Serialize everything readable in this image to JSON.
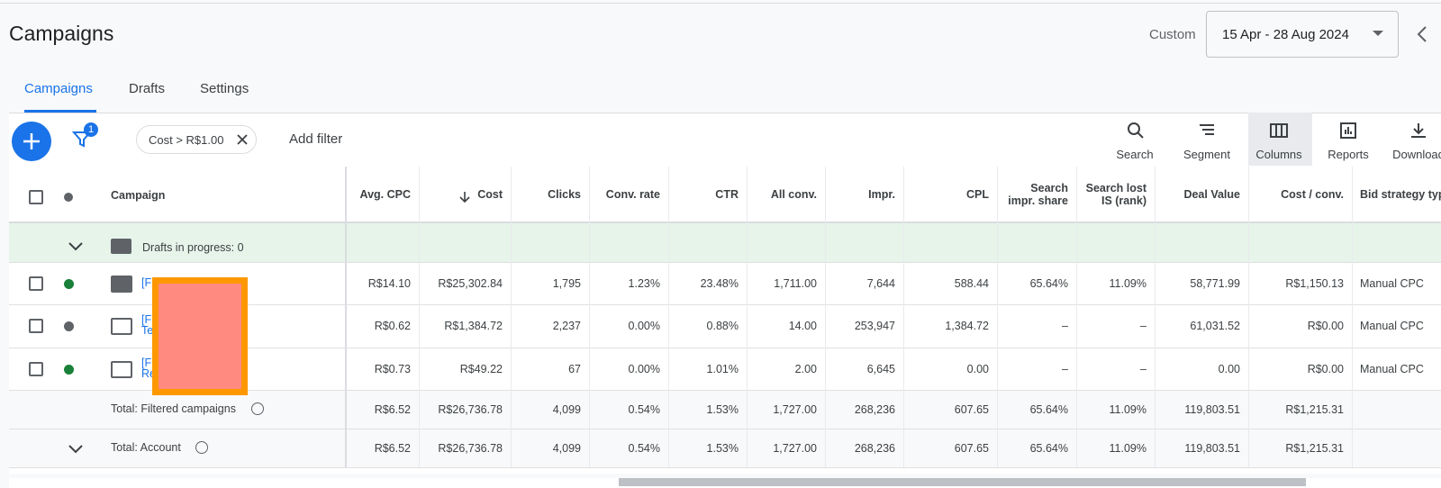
{
  "header": {
    "title": "Campaigns",
    "range_label": "Custom",
    "date_range": "15 Apr - 28 Aug 2024"
  },
  "tabs": [
    "Campaigns",
    "Drafts",
    "Settings"
  ],
  "toolbar": {
    "filter_count": "1",
    "filter_chip": "Cost > R$1.00",
    "add_filter": "Add filter",
    "actions": [
      "Search",
      "Segment",
      "Columns",
      "Reports",
      "Download"
    ]
  },
  "table": {
    "campaign_header": "Campaign",
    "columns": [
      "Avg. CPC",
      "Cost",
      "Clicks",
      "Conv. rate",
      "CTR",
      "All conv.",
      "Impr.",
      "CPL",
      "Search impr. share",
      "Search lost IS (rank)",
      "Deal Value",
      "Cost / conv.",
      "Bid strategy type"
    ],
    "drafts": "Drafts in progress: 0",
    "rows": [
      {
        "campaign": [
          "[F"
        ],
        "values": [
          "R$14.10",
          "R$25,302.84",
          "1,795",
          "1.23%",
          "23.48%",
          "1,711.00",
          "7,644",
          "588.44",
          "65.64%",
          "11.09%",
          "58,771.99",
          "R$1,150.13",
          "Manual CPC"
        ]
      },
      {
        "campaign": [
          "[F",
          "Te"
        ],
        "values": [
          "R$0.62",
          "R$1,384.72",
          "2,237",
          "0.00%",
          "0.88%",
          "14.00",
          "253,947",
          "1,384.72",
          "–",
          "–",
          "61,031.52",
          "R$0.00",
          "Manual CPC"
        ]
      },
      {
        "campaign": [
          "[F",
          "Re"
        ],
        "values": [
          "R$0.73",
          "R$49.22",
          "67",
          "0.00%",
          "1.01%",
          "2.00",
          "6,645",
          "0.00",
          "–",
          "–",
          "0.00",
          "R$0.00",
          "Manual CPC"
        ]
      }
    ],
    "totals": [
      {
        "label": "Total: Filtered campaigns",
        "values": [
          "R$6.52",
          "R$26,736.78",
          "4,099",
          "0.54%",
          "1.53%",
          "1,727.00",
          "268,236",
          "607.65",
          "65.64%",
          "11.09%",
          "119,803.51",
          "R$1,215.31"
        ]
      },
      {
        "label": "Total: Account",
        "values": [
          "R$6.52",
          "R$26,736.78",
          "4,099",
          "0.54%",
          "1.53%",
          "1,727.00",
          "268,236",
          "607.65",
          "65.64%",
          "11.09%",
          "119,803.51",
          "R$1,215.31"
        ]
      }
    ]
  }
}
